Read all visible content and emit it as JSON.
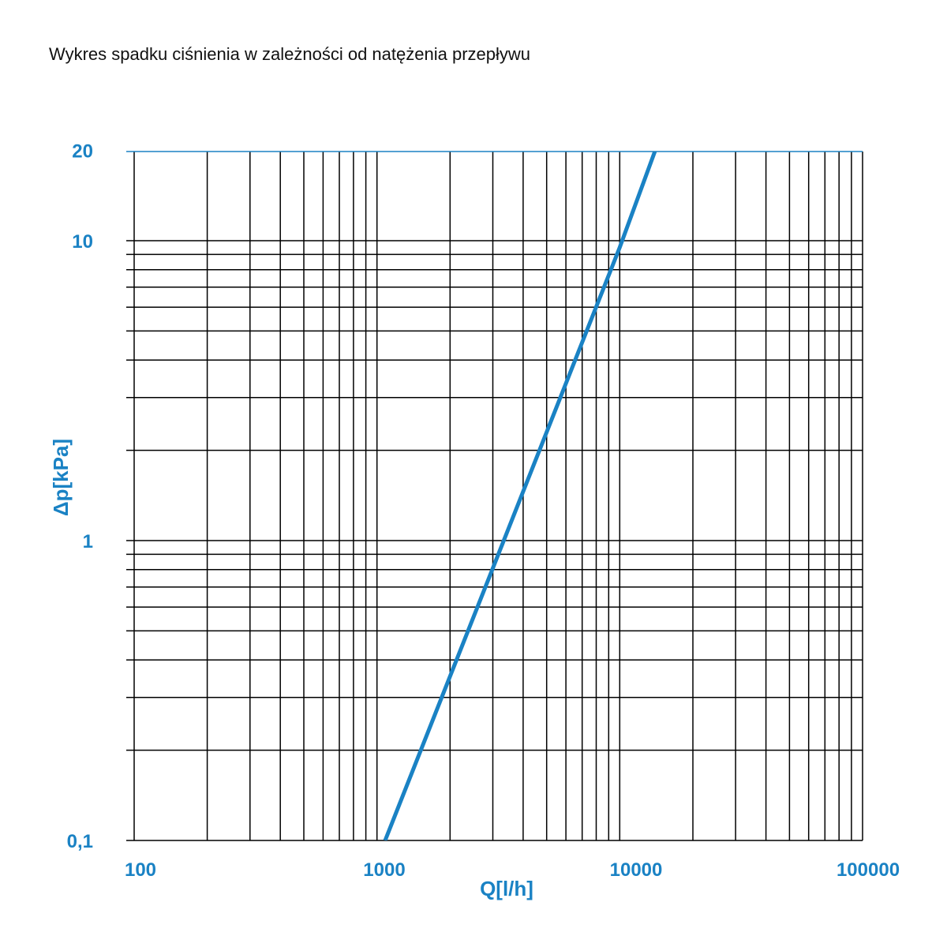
{
  "chart_data": {
    "type": "line",
    "title": "Wykres spadku ciśnienia w zależności od natężenia przepływu",
    "xlabel": "Q[l/h]",
    "ylabel": "Δp[kPa]",
    "x_scale": "log",
    "y_scale": "log",
    "xlim": [
      100,
      100000
    ],
    "ylim": [
      0.1,
      20
    ],
    "x_ticks": [
      {
        "value": 100,
        "label": "100"
      },
      {
        "value": 1000,
        "label": "1000"
      },
      {
        "value": 10000,
        "label": "10000"
      },
      {
        "value": 100000,
        "label": "100000"
      }
    ],
    "y_ticks": [
      {
        "value": 0.1,
        "label": "0,1"
      },
      {
        "value": 1,
        "label": "1"
      },
      {
        "value": 10,
        "label": "10"
      },
      {
        "value": 20,
        "label": "20"
      }
    ],
    "grid": true,
    "series": [
      {
        "x": [
          1080,
          10000,
          14000
        ],
        "y": [
          0.1,
          9.5,
          20
        ],
        "color": "#1a82c4"
      }
    ]
  },
  "colors": {
    "accent": "#1a82c4",
    "grid": "#000000"
  }
}
